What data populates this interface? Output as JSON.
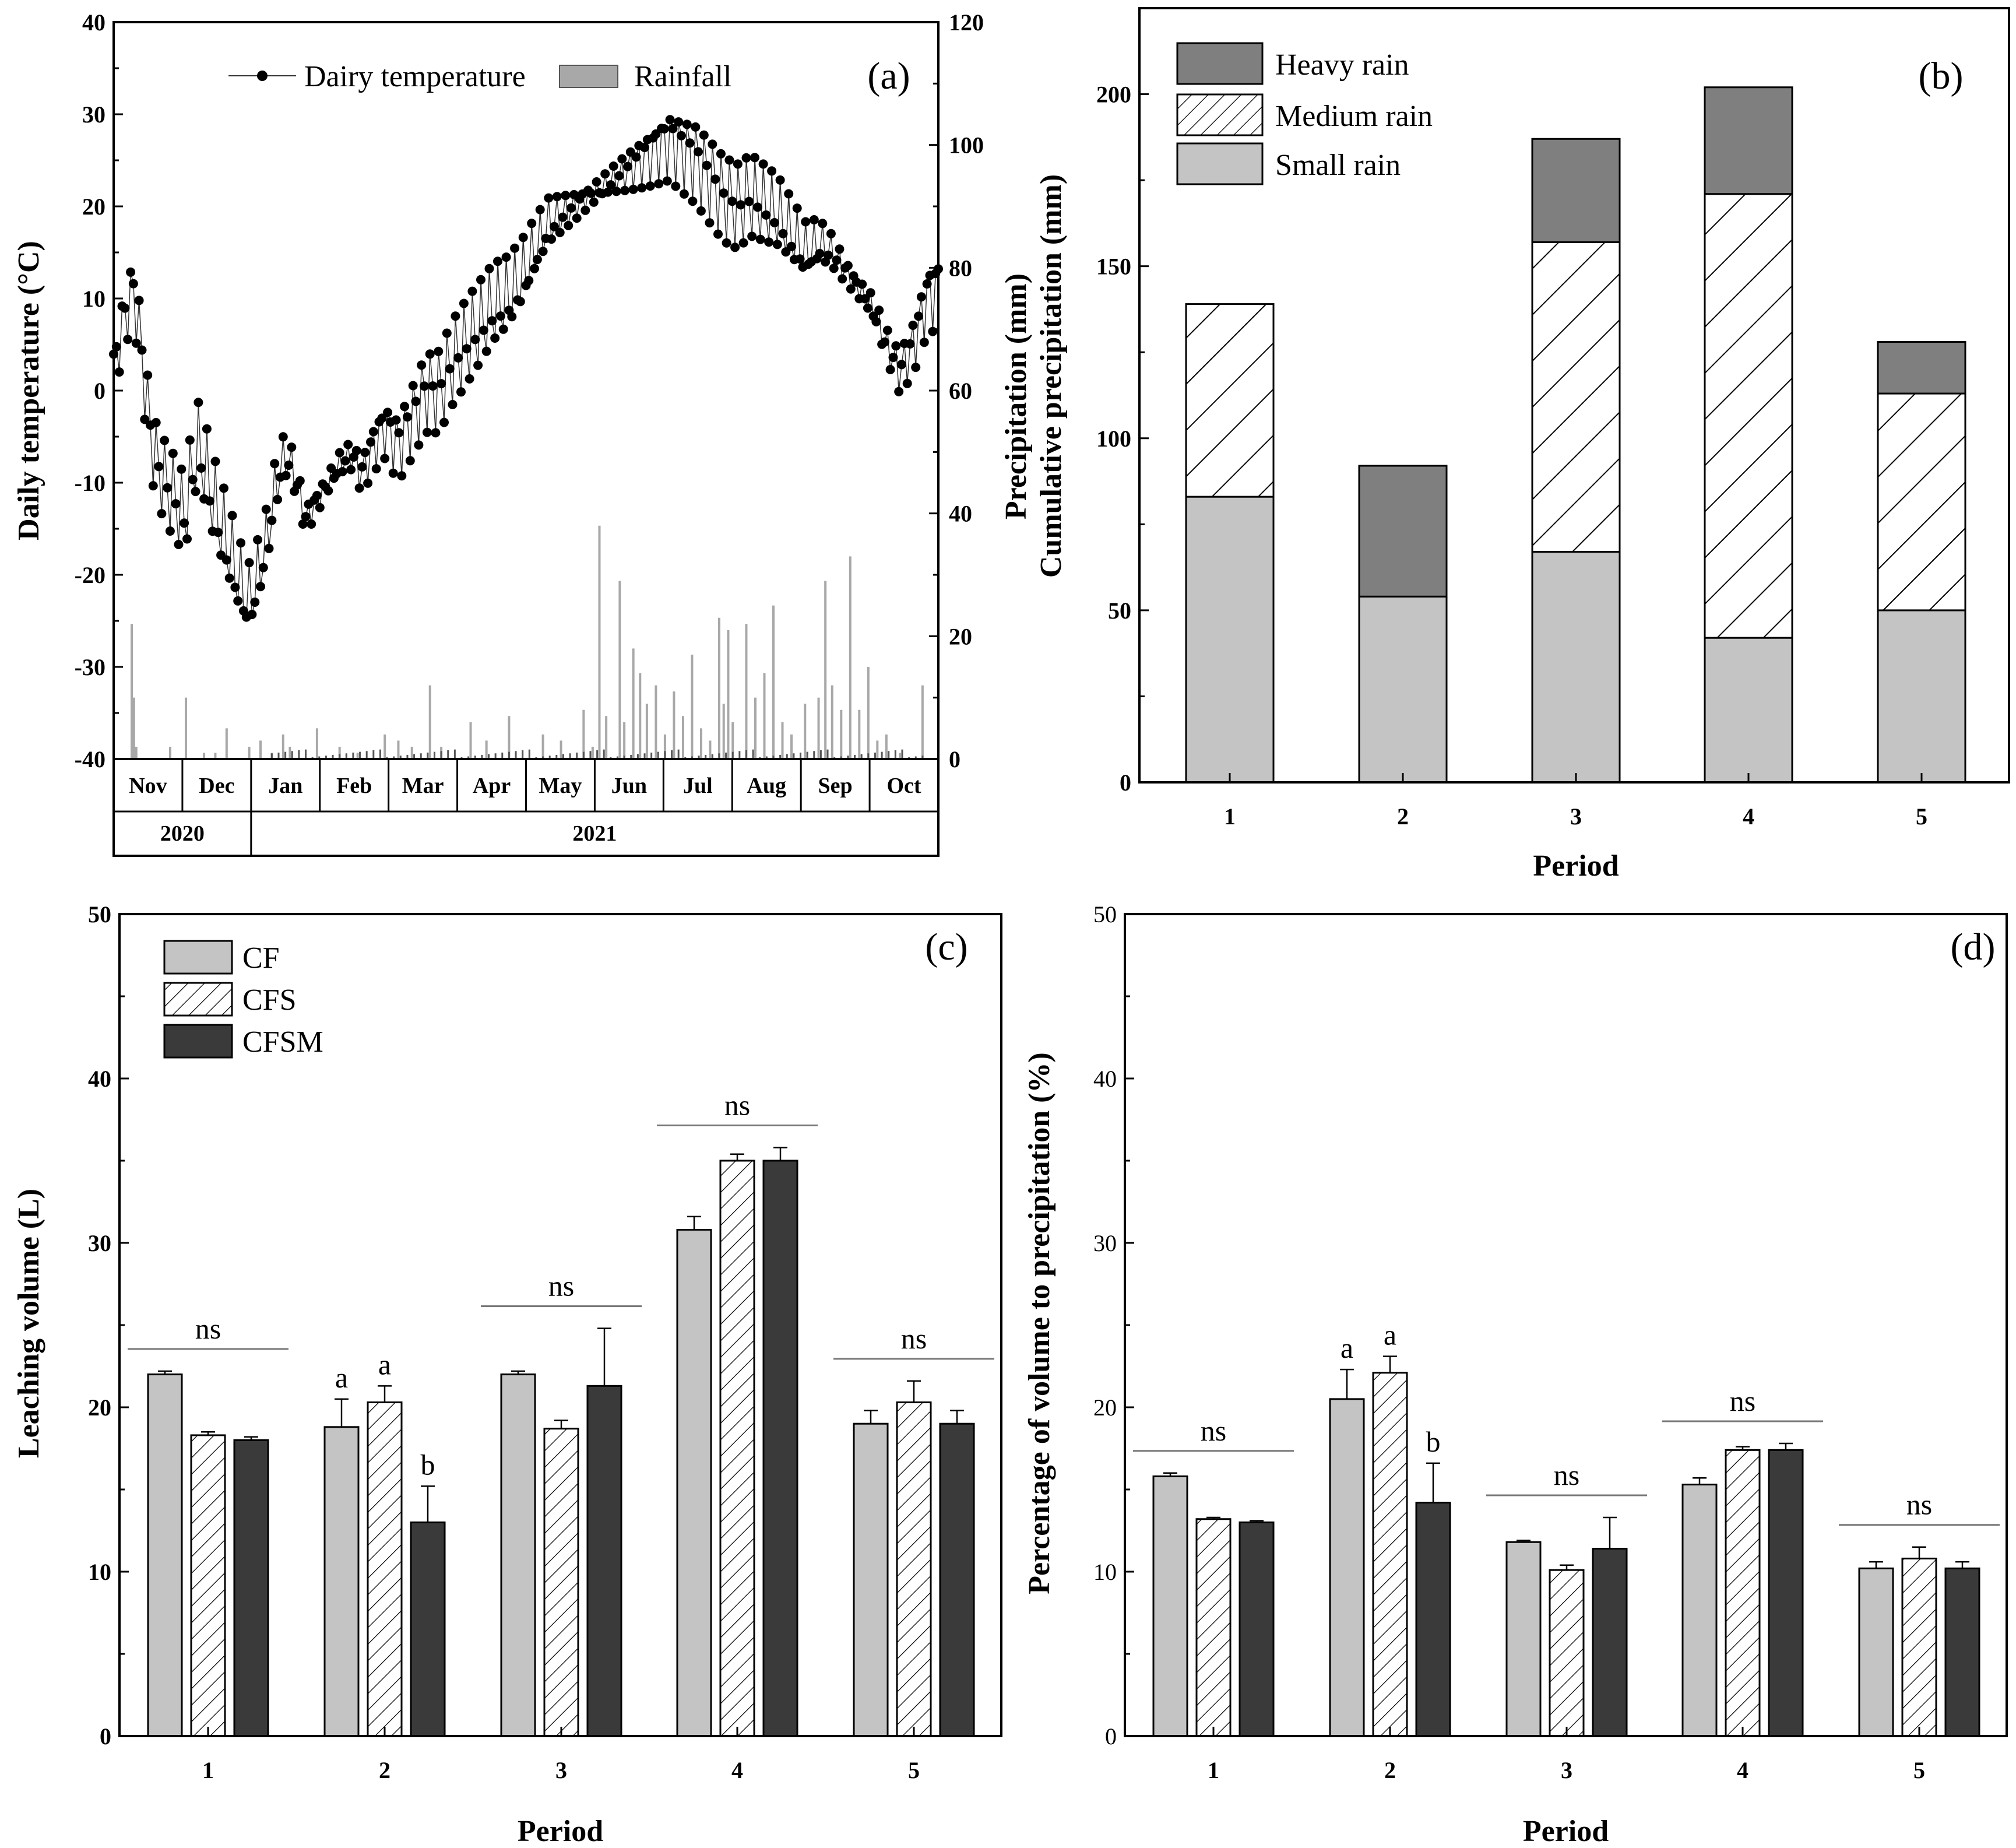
{
  "colors": {
    "light": "#c4c4c4",
    "dark": "#3a3a3a",
    "heavy": "#7f7f7f",
    "rain": "#a8a8a8",
    "hatch": "#000000"
  },
  "chart_data": [
    {
      "id": "a",
      "type": "line",
      "panel_label": "(a)",
      "ylabel": "Daily temperature (°C)",
      "y2label_lines": [
        "Precipitation (mm)",
        "Cumulative precipitation (mm)"
      ],
      "ylim": [
        -40,
        40
      ],
      "yticks": [
        -40,
        -30,
        -20,
        -10,
        0,
        10,
        20,
        30,
        40
      ],
      "y2lim": [
        0,
        120
      ],
      "y2ticks": [
        0,
        20,
        40,
        60,
        80,
        100,
        120
      ],
      "months": [
        "Nov",
        "Dec",
        "Jan",
        "Feb",
        "Mar",
        "Apr",
        "May",
        "Jun",
        "Jul",
        "Aug",
        "Sep",
        "Oct"
      ],
      "years": [
        {
          "label": "2020",
          "span": 2
        },
        {
          "label": "2021",
          "span": 10
        }
      ],
      "legend": {
        "temperature": "Dairy temperature",
        "rainfall": "Rainfall"
      },
      "temperature_anchors": [
        [
          0,
          2
        ],
        [
          3,
          6
        ],
        [
          6,
          9
        ],
        [
          9,
          11
        ],
        [
          12,
          5
        ],
        [
          15,
          -2
        ],
        [
          18,
          -7
        ],
        [
          21,
          -9
        ],
        [
          25,
          -11
        ],
        [
          28,
          -12
        ],
        [
          31,
          -14
        ],
        [
          34,
          -10
        ],
        [
          37,
          -6
        ],
        [
          40,
          -8
        ],
        [
          44,
          -12
        ],
        [
          48,
          -15
        ],
        [
          52,
          -18
        ],
        [
          56,
          -21
        ],
        [
          60,
          -23
        ],
        [
          64,
          -20
        ],
        [
          68,
          -16
        ],
        [
          72,
          -10
        ],
        [
          76,
          -7
        ],
        [
          80,
          -9
        ],
        [
          85,
          -14
        ],
        [
          90,
          -12
        ],
        [
          95,
          -10
        ],
        [
          100,
          -8
        ],
        [
          105,
          -7
        ],
        [
          110,
          -9
        ],
        [
          115,
          -6
        ],
        [
          120,
          -4
        ],
        [
          126,
          -6
        ],
        [
          132,
          -3
        ],
        [
          138,
          0
        ],
        [
          144,
          0
        ],
        [
          150,
          3
        ],
        [
          156,
          5
        ],
        [
          162,
          7
        ],
        [
          168,
          9
        ],
        [
          174,
          10
        ],
        [
          180,
          12
        ],
        [
          186,
          15
        ],
        [
          192,
          18
        ],
        [
          198,
          19
        ],
        [
          204,
          20
        ],
        [
          210,
          21
        ],
        [
          216,
          22
        ],
        [
          222,
          23
        ],
        [
          228,
          24
        ],
        [
          234,
          25
        ],
        [
          240,
          26
        ],
        [
          246,
          27
        ],
        [
          252,
          26
        ],
        [
          258,
          25
        ],
        [
          264,
          23
        ],
        [
          270,
          21
        ],
        [
          276,
          20
        ],
        [
          282,
          21
        ],
        [
          288,
          20
        ],
        [
          294,
          19
        ],
        [
          300,
          17
        ],
        [
          306,
          15
        ],
        [
          312,
          16
        ],
        [
          318,
          15
        ],
        [
          324,
          13
        ],
        [
          330,
          11
        ],
        [
          336,
          9
        ],
        [
          342,
          5
        ],
        [
          348,
          2
        ],
        [
          354,
          5
        ],
        [
          360,
          10
        ],
        [
          365,
          11
        ]
      ],
      "rainfall_events": [
        [
          8,
          22
        ],
        [
          9,
          10
        ],
        [
          10,
          2
        ],
        [
          25,
          2
        ],
        [
          32,
          10
        ],
        [
          40,
          1
        ],
        [
          45,
          1
        ],
        [
          50,
          5
        ],
        [
          60,
          2
        ],
        [
          65,
          3
        ],
        [
          70,
          1
        ],
        [
          75,
          4
        ],
        [
          78,
          2
        ],
        [
          90,
          5
        ],
        [
          100,
          2
        ],
        [
          108,
          1
        ],
        [
          120,
          4
        ],
        [
          126,
          3
        ],
        [
          132,
          2
        ],
        [
          140,
          12
        ],
        [
          145,
          2
        ],
        [
          158,
          6
        ],
        [
          165,
          3
        ],
        [
          175,
          7
        ],
        [
          190,
          4
        ],
        [
          198,
          3
        ],
        [
          208,
          8
        ],
        [
          212,
          2
        ],
        [
          215,
          38
        ],
        [
          218,
          7
        ],
        [
          224,
          29
        ],
        [
          226,
          6
        ],
        [
          230,
          18
        ],
        [
          233,
          14
        ],
        [
          236,
          9
        ],
        [
          240,
          12
        ],
        [
          244,
          4
        ],
        [
          248,
          11
        ],
        [
          252,
          7
        ],
        [
          256,
          17
        ],
        [
          260,
          5
        ],
        [
          264,
          3
        ],
        [
          268,
          23
        ],
        [
          270,
          9
        ],
        [
          272,
          21
        ],
        [
          274,
          6
        ],
        [
          280,
          22
        ],
        [
          284,
          10
        ],
        [
          288,
          14
        ],
        [
          292,
          25
        ],
        [
          296,
          6
        ],
        [
          300,
          4
        ],
        [
          306,
          9
        ],
        [
          312,
          10
        ],
        [
          315,
          29
        ],
        [
          318,
          12
        ],
        [
          322,
          8
        ],
        [
          326,
          33
        ],
        [
          330,
          8
        ],
        [
          334,
          15
        ],
        [
          338,
          3
        ],
        [
          342,
          4
        ],
        [
          348,
          1
        ],
        [
          358,
          12
        ]
      ]
    },
    {
      "id": "b",
      "type": "bar",
      "stacked": true,
      "panel_label": "(b)",
      "categories": [
        "1",
        "2",
        "3",
        "4",
        "5"
      ],
      "xlabel": "Period",
      "ylim": [
        0,
        225
      ],
      "yticks": [
        0,
        50,
        100,
        150,
        200
      ],
      "series": [
        {
          "name": "Small rain",
          "values": [
            83,
            54,
            67,
            42,
            50
          ]
        },
        {
          "name": "Medium rain",
          "values": [
            56,
            0,
            90,
            129,
            63
          ]
        },
        {
          "name": "Heavy rain",
          "values": [
            0,
            38,
            30,
            31,
            15
          ]
        }
      ],
      "legend_order": [
        "Heavy rain",
        "Medium rain",
        "Small rain"
      ]
    },
    {
      "id": "c",
      "type": "bar",
      "panel_label": "(c)",
      "categories": [
        "1",
        "2",
        "3",
        "4",
        "5"
      ],
      "xlabel": "Period",
      "ylabel": "Leaching volume (L)",
      "ylim": [
        0,
        50
      ],
      "yticks": [
        0,
        10,
        20,
        30,
        40,
        50
      ],
      "series": [
        {
          "name": "CF",
          "values": [
            22.0,
            18.8,
            22.0,
            30.8,
            19.0
          ],
          "errors": [
            0.2,
            1.7,
            0.2,
            0.8,
            0.8
          ]
        },
        {
          "name": "CFS",
          "values": [
            18.3,
            20.3,
            18.7,
            35.0,
            20.3
          ],
          "errors": [
            0.2,
            1.0,
            0.5,
            0.4,
            1.3
          ]
        },
        {
          "name": "CFSM",
          "values": [
            18.0,
            13.0,
            21.3,
            35.0,
            19.0
          ],
          "errors": [
            0.2,
            2.2,
            3.5,
            0.8,
            0.8
          ]
        }
      ],
      "group_annotations": [
        "ns",
        "",
        "ns",
        "ns",
        "ns"
      ],
      "letters": [
        [
          "",
          "",
          ""
        ],
        [
          "a",
          "a",
          "b"
        ],
        [
          "",
          "",
          ""
        ],
        [
          "",
          "",
          ""
        ],
        [
          "",
          "",
          ""
        ]
      ]
    },
    {
      "id": "d",
      "type": "bar",
      "panel_label": "(d)",
      "categories": [
        "1",
        "2",
        "3",
        "4",
        "5"
      ],
      "xlabel": "Period",
      "ylabel": "Percentage of volume to precipitation (%)",
      "ylim": [
        0,
        50
      ],
      "yticks": [
        0,
        10,
        20,
        30,
        40,
        50
      ],
      "series": [
        {
          "name": "CF",
          "values": [
            15.8,
            20.5,
            11.8,
            15.3,
            10.2
          ],
          "errors": [
            0.2,
            1.8,
            0.1,
            0.4,
            0.4
          ]
        },
        {
          "name": "CFS",
          "values": [
            13.2,
            22.1,
            10.1,
            17.4,
            10.8
          ],
          "errors": [
            0.1,
            1.0,
            0.3,
            0.2,
            0.7
          ]
        },
        {
          "name": "CFSM",
          "values": [
            13.0,
            14.2,
            11.4,
            17.4,
            10.2
          ],
          "errors": [
            0.1,
            2.4,
            1.9,
            0.4,
            0.4
          ]
        }
      ],
      "group_annotations": [
        "ns",
        "",
        "ns",
        "ns",
        "ns"
      ],
      "letters": [
        [
          "",
          "",
          ""
        ],
        [
          "a",
          "a",
          "b"
        ],
        [
          "",
          "",
          ""
        ],
        [
          "",
          "",
          ""
        ],
        [
          "",
          "",
          ""
        ]
      ]
    }
  ]
}
